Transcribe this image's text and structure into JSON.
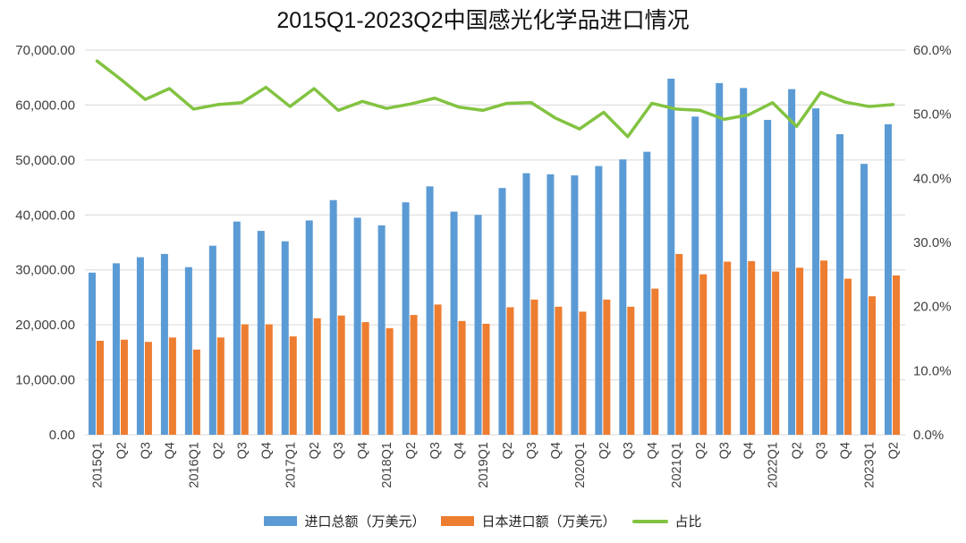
{
  "chart_data": {
    "type": "bar",
    "title": "2015Q1-2023Q2中国感光化学品进口情况",
    "categories": [
      "2015Q1",
      "Q2",
      "Q3",
      "Q4",
      "2016Q1",
      "Q2",
      "Q3",
      "Q4",
      "2017Q1",
      "Q2",
      "Q3",
      "Q4",
      "2018Q1",
      "Q2",
      "Q3",
      "Q4",
      "2019Q1",
      "Q2",
      "Q3",
      "Q4",
      "2020Q1",
      "Q2",
      "Q3",
      "Q4",
      "2021Q1",
      "Q2",
      "Q3",
      "Q4",
      "2022Q1",
      "Q2",
      "Q3",
      "Q4",
      "2023Q1",
      "Q2"
    ],
    "series": [
      {
        "name": "进口总额（万美元）",
        "type": "bar",
        "axis": "left",
        "color": "#5B9BD5",
        "values": [
          29500,
          31200,
          32300,
          32900,
          30500,
          34400,
          38800,
          37100,
          35200,
          39000,
          42700,
          39500,
          38100,
          42300,
          45200,
          40600,
          40000,
          44900,
          47600,
          47400,
          47200,
          48900,
          50100,
          51500,
          64800,
          57900,
          64000,
          63100,
          57300,
          62900,
          59400,
          54700,
          49300,
          56500
        ]
      },
      {
        "name": "日本进口额（万美元）",
        "type": "bar",
        "axis": "left",
        "color": "#ED7D31",
        "values": [
          17100,
          17300,
          16900,
          17700,
          15500,
          17700,
          20100,
          20100,
          17900,
          21200,
          21700,
          20500,
          19400,
          21800,
          23700,
          20700,
          20200,
          23200,
          24600,
          23300,
          22400,
          24600,
          23300,
          26600,
          32900,
          29200,
          31500,
          31600,
          29700,
          30400,
          31700,
          28400,
          25200,
          29000
        ]
      },
      {
        "name": "占比",
        "type": "line",
        "axis": "right",
        "color": "#82C341",
        "values_percent": [
          58.3,
          55.4,
          52.3,
          54.0,
          50.8,
          51.5,
          51.8,
          54.2,
          51.2,
          54.0,
          50.6,
          52.0,
          50.9,
          51.6,
          52.5,
          51.1,
          50.6,
          51.7,
          51.8,
          49.4,
          47.7,
          50.3,
          46.5,
          51.7,
          50.8,
          50.6,
          49.2,
          49.9,
          51.8,
          48.1,
          53.4,
          51.9,
          51.2,
          51.5
        ]
      }
    ],
    "y_left": {
      "min": 0,
      "max": 70000,
      "tick_labels": [
        "0.00",
        "10,000.00",
        "20,000.00",
        "30,000.00",
        "40,000.00",
        "50,000.00",
        "60,000.00",
        "70,000.00"
      ]
    },
    "y_right": {
      "min": 0,
      "max": 60,
      "tick_labels": [
        "0.0%",
        "10.0%",
        "20.0%",
        "30.0%",
        "40.0%",
        "50.0%",
        "60.0%"
      ]
    },
    "grid": true,
    "legend_position": "bottom",
    "gridline_color": "#d9d9d9",
    "axis_label_color": "#3f3f3f"
  }
}
